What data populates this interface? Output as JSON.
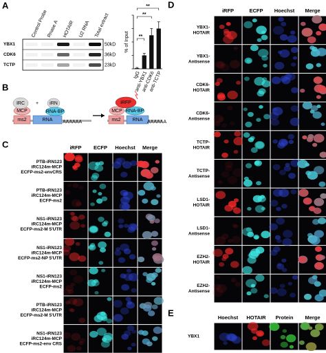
{
  "panel_a": {
    "label": "A",
    "lanes": [
      "Control Probe",
      "Rnase A",
      "HOTAIR",
      "U2 RNA",
      "Total extract"
    ],
    "blot_rows": [
      {
        "protein": "YBX1",
        "size": "50kD"
      },
      {
        "protein": "CDK6",
        "size": "36kD"
      },
      {
        "protein": "TCTP",
        "size": "23kD"
      }
    ],
    "chart": {
      "type": "bar",
      "y_label": "% of Input",
      "categories": [
        "IgG",
        "anti-YBX1",
        "anti-CDK6",
        "anti-TCTP"
      ],
      "values": [
        0.1,
        2,
        5,
        6
      ],
      "errors": [
        0.1,
        0.3,
        1,
        1
      ],
      "ylim": [
        0,
        8
      ],
      "yticks": [
        0,
        2,
        4,
        6,
        8
      ],
      "color": "#111111",
      "significance": [
        "**",
        "**",
        "**"
      ]
    }
  },
  "panel_b": {
    "label": "B",
    "irc": "IRC",
    "irn": "iRN",
    "mcp": "MCP",
    "ms2": "ms2",
    "rna_bp": "RNA-BP",
    "rna": "RNA",
    "polya": "AAAAAA",
    "plus": "+",
    "irfp": "iRFP",
    "mcp2": "MCP",
    "ms2_2": "ms2",
    "rna_bp2": "RNA-BP",
    "rna2": "RNA",
    "polya2": "AAAAAA"
  },
  "panel_c": {
    "label": "C",
    "columns": [
      "iRFP",
      "ECFP",
      "Hoechst",
      "Merge"
    ],
    "rows": [
      [
        "PTB-iRN123",
        "iRC124m-MCP",
        "ECFP-ms2-envCRS"
      ],
      [
        "PTB-iRN123",
        "iRC124m-MCP",
        "ECFP-ms2"
      ],
      [
        "NS1-iRN123",
        "iRC124m-MCP",
        "ECFP-ms2-M 5'UTR"
      ],
      [
        "NS1-iRN123",
        "iRC124m-MCP",
        "ECFP-ms2-NP 5'UTR"
      ],
      [
        "NS1-iRN123",
        "iRC124m-MCP",
        "ECFP-ms2"
      ],
      [
        "PTB-iRN123",
        "iRC124m-MCP",
        "ECFP-ms2-M 5'UTR"
      ],
      [
        "NS1-iRN123",
        "iRC124m-MCP",
        "ECFP-ms2-env CRS"
      ]
    ]
  },
  "panel_d": {
    "label": "D",
    "columns": [
      "iRFP",
      "ECFP",
      "Hoechst",
      "Merge"
    ],
    "rows": [
      [
        "YBX1-",
        "HOTAIR"
      ],
      [
        "YBX1-",
        "Antisense"
      ],
      [
        "CDK6-",
        "HOTAIR"
      ],
      [
        "CDK6-",
        "Antisense"
      ],
      [
        "TCTP-",
        "HOTAIR"
      ],
      [
        "TCTP-",
        "Antisense"
      ],
      [
        "LSD1-",
        "HOTAIR"
      ],
      [
        "LSD1-",
        "Antisense"
      ],
      [
        "EZH2-",
        "HOTAIR"
      ],
      [
        "EZH2-",
        "Antisense"
      ]
    ]
  },
  "panel_e": {
    "label": "E",
    "columns": [
      "Hoechst",
      "HOTAIR",
      "Protein",
      "Merge"
    ],
    "rows": [
      "YBX1"
    ]
  }
}
